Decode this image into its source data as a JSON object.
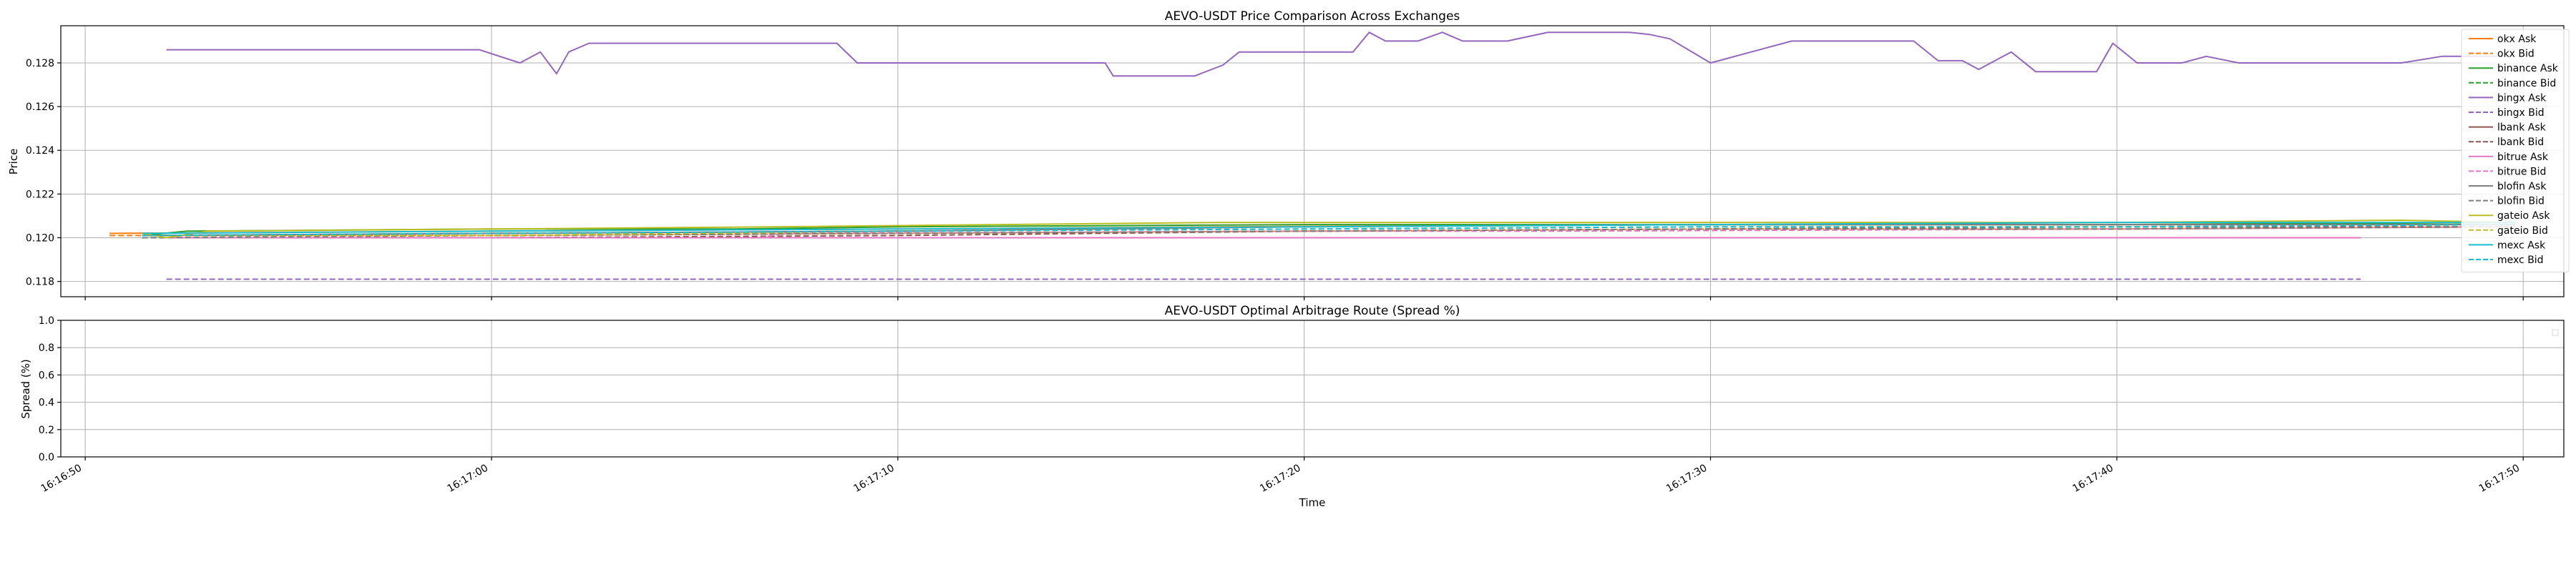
{
  "charts": [
    {
      "chart_data": {
        "type": "line",
        "title": "AEVO-USDT Price Comparison Across Exchanges",
        "xlabel": "",
        "ylabel": "Price",
        "xlim": [
          "16:16:49.4",
          "16:17:51.0"
        ],
        "ylim": [
          0.1173,
          0.1297
        ],
        "yticks": [
          0.118,
          0.12,
          0.122,
          0.124,
          0.126,
          0.128
        ],
        "ytick_labels": [
          "0.118",
          "0.120",
          "0.122",
          "0.124",
          "0.126",
          "0.128"
        ],
        "xticks": [
          "16:16:50",
          "16:17:00",
          "16:17:10",
          "16:17:20",
          "16:17:30",
          "16:17:40",
          "16:17:50"
        ],
        "grid": true,
        "legend_position": "upper-right",
        "series": [
          {
            "name": "okx Ask",
            "color": "#ff7f0e",
            "dash": "solid",
            "points": [
              [
                "16:16:50.6",
                0.1202
              ],
              [
                "16:17:00.0",
                0.1203
              ],
              [
                "16:17:10.0",
                0.1204
              ],
              [
                "16:17:18.0",
                0.1205
              ],
              [
                "16:17:30.0",
                0.1206
              ],
              [
                "16:17:40.0",
                0.1206
              ],
              [
                "16:17:49.8",
                0.1207
              ]
            ]
          },
          {
            "name": "okx Bid",
            "color": "#ff7f0e",
            "dash": "dashed",
            "points": [
              [
                "16:16:50.6",
                0.1201
              ],
              [
                "16:17:00.0",
                0.1201
              ],
              [
                "16:17:10.0",
                0.1202
              ],
              [
                "16:17:20.0",
                0.1203
              ],
              [
                "16:17:30.0",
                0.1204
              ],
              [
                "16:17:40.0",
                0.1204
              ],
              [
                "16:17:49.8",
                0.1205
              ]
            ]
          },
          {
            "name": "binance Ask",
            "color": "#2ca02c",
            "dash": "solid",
            "points": [
              [
                "16:16:51.4",
                0.1201
              ],
              [
                "16:16:52.5",
                0.1203
              ],
              [
                "16:17:00.0",
                0.1204
              ],
              [
                "16:17:06.0",
                0.1204
              ],
              [
                "16:17:10.0",
                0.1205
              ],
              [
                "16:17:20.0",
                0.1206
              ],
              [
                "16:17:30.0",
                0.1206
              ],
              [
                "16:17:40.0",
                0.1206
              ],
              [
                "16:17:49.8",
                0.1207
              ]
            ]
          },
          {
            "name": "binance Bid",
            "color": "#2ca02c",
            "dash": "dashed",
            "points": [
              [
                "16:16:51.4",
                0.12
              ],
              [
                "16:17:00.0",
                0.1201
              ],
              [
                "16:17:10.0",
                0.1202
              ],
              [
                "16:17:20.0",
                0.1203
              ],
              [
                "16:17:30.0",
                0.1204
              ],
              [
                "16:17:40.0",
                0.1205
              ],
              [
                "16:17:49.8",
                0.1205
              ]
            ]
          },
          {
            "name": "bingx Ask",
            "color": "#9467bd",
            "dash": "solid",
            "points": [
              [
                "16:16:52.0",
                0.1286
              ],
              [
                "16:16:59.7",
                0.1286
              ],
              [
                "16:17:00.7",
                0.128
              ],
              [
                "16:17:01.2",
                0.1285
              ],
              [
                "16:17:01.6",
                0.1275
              ],
              [
                "16:17:01.9",
                0.1285
              ],
              [
                "16:17:02.4",
                0.1289
              ],
              [
                "16:17:08.5",
                0.1289
              ],
              [
                "16:17:09.0",
                0.128
              ],
              [
                "16:17:15.1",
                0.128
              ],
              [
                "16:17:15.3",
                0.1274
              ],
              [
                "16:17:17.3",
                0.1274
              ],
              [
                "16:17:18.0",
                0.1279
              ],
              [
                "16:17:18.4",
                0.1285
              ],
              [
                "16:17:21.2",
                0.1285
              ],
              [
                "16:17:21.6",
                0.1294
              ],
              [
                "16:17:22.0",
                0.129
              ],
              [
                "16:17:22.8",
                0.129
              ],
              [
                "16:17:23.4",
                0.1294
              ],
              [
                "16:17:23.9",
                0.129
              ],
              [
                "16:17:25.0",
                0.129
              ],
              [
                "16:17:26.0",
                0.1294
              ],
              [
                "16:17:28.0",
                0.1294
              ],
              [
                "16:17:28.5",
                0.1293
              ],
              [
                "16:17:29.0",
                0.1291
              ],
              [
                "16:17:30.0",
                0.128
              ],
              [
                "16:17:31.0",
                0.1285
              ],
              [
                "16:17:32.0",
                0.129
              ],
              [
                "16:17:35.0",
                0.129
              ],
              [
                "16:17:35.6",
                0.1281
              ],
              [
                "16:17:36.2",
                0.1281
              ],
              [
                "16:17:36.6",
                0.1277
              ],
              [
                "16:17:37.4",
                0.1285
              ],
              [
                "16:17:38.0",
                0.1276
              ],
              [
                "16:17:39.5",
                0.1276
              ],
              [
                "16:17:39.9",
                0.1289
              ],
              [
                "16:17:40.5",
                0.128
              ],
              [
                "16:17:41.6",
                0.128
              ],
              [
                "16:17:42.2",
                0.1283
              ],
              [
                "16:17:43.0",
                0.128
              ],
              [
                "16:17:47.0",
                0.128
              ],
              [
                "16:17:48.0",
                0.1283
              ],
              [
                "16:17:49.8",
                0.1283
              ]
            ]
          },
          {
            "name": "bingx Bid",
            "color": "#9467bd",
            "dash": "dashed",
            "points": [
              [
                "16:16:52.0",
                0.1181
              ],
              [
                "16:17:46.0",
                0.1181
              ]
            ]
          },
          {
            "name": "lbank Ask",
            "color": "#8c564b",
            "dash": "solid",
            "points": [
              [
                "16:16:51.4",
                0.1201
              ],
              [
                "16:17:00.0",
                0.1202
              ],
              [
                "16:17:10.0",
                0.1203
              ],
              [
                "16:17:20.0",
                0.1205
              ],
              [
                "16:17:30.0",
                0.1206
              ],
              [
                "16:17:40.0",
                0.1206
              ],
              [
                "16:17:49.8",
                0.1206
              ]
            ]
          },
          {
            "name": "lbank Bid",
            "color": "#8c564b",
            "dash": "dashed",
            "points": [
              [
                "16:16:51.4",
                0.12
              ],
              [
                "16:17:00.0",
                0.12
              ],
              [
                "16:17:10.0",
                0.1201
              ],
              [
                "16:17:20.0",
                0.1203
              ],
              [
                "16:17:30.0",
                0.1204
              ],
              [
                "16:17:40.0",
                0.1205
              ],
              [
                "16:17:49.8",
                0.1205
              ]
            ]
          },
          {
            "name": "bitrue Ask",
            "color": "#e377c2",
            "dash": "solid",
            "points": [
              [
                "16:16:52.0",
                0.12
              ],
              [
                "16:17:46.0",
                0.12
              ]
            ]
          },
          {
            "name": "bitrue Bid",
            "color": "#e377c2",
            "dash": "dashed",
            "points": [
              [
                "16:16:52.0",
                0.12
              ],
              [
                "16:17:06.6",
                0.12
              ],
              [
                "16:17:07.2",
                0.1202
              ],
              [
                "16:17:20.0",
                0.1203
              ],
              [
                "16:17:26.0",
                0.1203
              ],
              [
                "16:17:40.0",
                0.1204
              ],
              [
                "16:17:49.8",
                0.1205
              ]
            ]
          },
          {
            "name": "blofin Ask",
            "color": "#7f7f7f",
            "dash": "solid",
            "points": [
              [
                "16:16:51.4",
                0.1201
              ],
              [
                "16:17:00.0",
                0.1202
              ],
              [
                "16:17:10.0",
                0.1203
              ],
              [
                "16:17:20.0",
                0.1205
              ],
              [
                "16:17:30.0",
                0.1206
              ],
              [
                "16:17:40.0",
                0.1206
              ],
              [
                "16:17:49.8",
                0.1206
              ]
            ]
          },
          {
            "name": "blofin Bid",
            "color": "#7f7f7f",
            "dash": "dashed",
            "points": [
              [
                "16:16:51.4",
                0.12
              ],
              [
                "16:17:00.0",
                0.1201
              ],
              [
                "16:17:10.0",
                0.1202
              ],
              [
                "16:17:20.0",
                0.1203
              ],
              [
                "16:17:30.0",
                0.1204
              ],
              [
                "16:17:40.0",
                0.1204
              ],
              [
                "16:17:49.8",
                0.1205
              ]
            ]
          },
          {
            "name": "gateio Ask",
            "color": "#bcbd22",
            "dash": "solid",
            "points": [
              [
                "16:16:51.4",
                0.1202
              ],
              [
                "16:16:52.0",
                0.12
              ],
              [
                "16:16:53.0",
                0.1203
              ],
              [
                "16:17:00.0",
                0.1204
              ],
              [
                "16:17:07.0",
                0.1205
              ],
              [
                "16:17:18.0",
                0.1207
              ],
              [
                "16:17:27.0",
                0.1207
              ],
              [
                "16:17:40.0",
                0.1207
              ],
              [
                "16:17:47.0",
                0.1208
              ],
              [
                "16:17:49.8",
                0.1207
              ]
            ]
          },
          {
            "name": "gateio Bid",
            "color": "#bcbd22",
            "dash": "dashed",
            "points": [
              [
                "16:16:51.4",
                0.1201
              ],
              [
                "16:17:00.0",
                0.1201
              ],
              [
                "16:17:10.0",
                0.1203
              ],
              [
                "16:17:20.0",
                0.1204
              ],
              [
                "16:17:30.0",
                0.1205
              ],
              [
                "16:17:40.0",
                0.1205
              ],
              [
                "16:17:49.8",
                0.1206
              ]
            ]
          },
          {
            "name": "mexc Ask",
            "color": "#17becf",
            "dash": "solid",
            "points": [
              [
                "16:16:51.4",
                0.1202
              ],
              [
                "16:17:00.0",
                0.1203
              ],
              [
                "16:17:10.0",
                0.1204
              ],
              [
                "16:17:20.0",
                0.1205
              ],
              [
                "16:17:30.0",
                0.1206
              ],
              [
                "16:17:40.0",
                0.1207
              ],
              [
                "16:17:49.8",
                0.1207
              ]
            ]
          },
          {
            "name": "mexc Bid",
            "color": "#17becf",
            "dash": "dashed",
            "points": [
              [
                "16:16:51.4",
                0.1201
              ],
              [
                "16:17:00.0",
                0.1202
              ],
              [
                "16:17:10.0",
                0.1203
              ],
              [
                "16:17:20.0",
                0.1204
              ],
              [
                "16:17:30.0",
                0.1205
              ],
              [
                "16:17:40.0",
                0.1205
              ],
              [
                "16:17:49.8",
                0.1206
              ]
            ]
          }
        ]
      }
    },
    {
      "chart_data": {
        "type": "line",
        "title": "AEVO-USDT Optimal Arbitrage Route (Spread %)",
        "xlabel": "Time",
        "ylabel": "Spread (%)",
        "xlim": [
          "16:16:49.4",
          "16:17:51.0"
        ],
        "ylim": [
          0.0,
          1.0
        ],
        "yticks": [
          0.0,
          0.2,
          0.4,
          0.6,
          0.8,
          1.0
        ],
        "ytick_labels": [
          "0.0",
          "0.2",
          "0.4",
          "0.6",
          "0.8",
          "1.0"
        ],
        "xticks": [
          "16:16:50",
          "16:17:00",
          "16:17:10",
          "16:17:20",
          "16:17:30",
          "16:17:40",
          "16:17:50"
        ],
        "xtick_labels": [
          "16:16:50",
          "16:17:00",
          "16:17:10",
          "16:17:20",
          "16:17:30",
          "16:17:40",
          "16:17:50"
        ],
        "grid": true,
        "legend_position": "upper-right",
        "series": []
      }
    }
  ]
}
